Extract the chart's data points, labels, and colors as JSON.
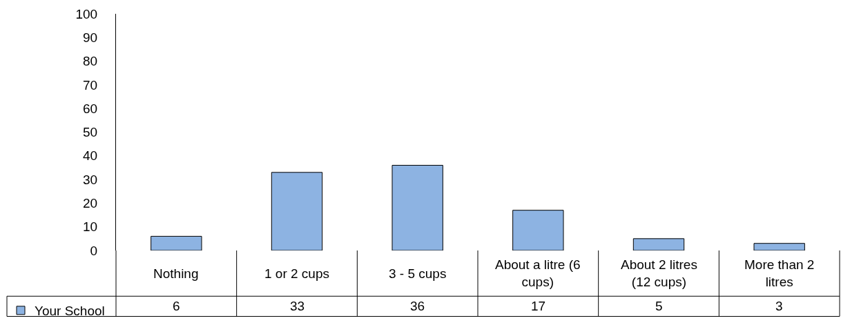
{
  "chart_data": {
    "type": "bar",
    "categories": [
      "Nothing",
      "1 or 2 cups",
      "3 - 5 cups",
      "About a litre (6 cups)",
      "About 2 litres (12 cups)",
      "More than 2 litres"
    ],
    "series": [
      {
        "name": "Your School",
        "color": "#8db3e2",
        "values": [
          6,
          33,
          36,
          17,
          5,
          3
        ]
      }
    ],
    "ylim": [
      0,
      100
    ],
    "yticks": [
      0,
      10,
      20,
      30,
      40,
      50,
      60,
      70,
      80,
      90,
      100
    ],
    "data_labels": true,
    "legend": "bottom left"
  }
}
